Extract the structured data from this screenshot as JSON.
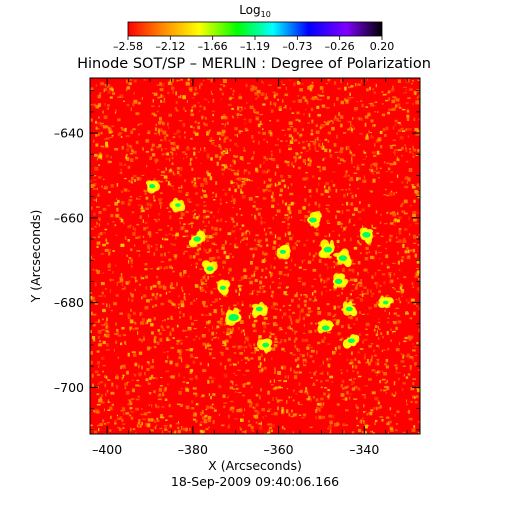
{
  "chart_data": {
    "type": "heatmap",
    "title": "Hinode SOT/SP – MERLIN : Degree of Polarization",
    "xlabel": "X (Arcseconds)",
    "ylabel": "Y (Arcseconds)",
    "footer": "18-Sep-2009 09:40:06.166",
    "xlim": [
      -404,
      -327
    ],
    "ylim": [
      -711,
      -627
    ],
    "x_ticks": [
      {
        "value": -400,
        "label": "–400"
      },
      {
        "value": -380,
        "label": "–380"
      },
      {
        "value": -360,
        "label": "–360"
      },
      {
        "value": -340,
        "label": "–340"
      }
    ],
    "y_ticks": [
      {
        "value": -640,
        "label": "–640"
      },
      {
        "value": -660,
        "label": "–660"
      },
      {
        "value": -680,
        "label": "–680"
      },
      {
        "value": -700,
        "label": "–700"
      }
    ],
    "colorbar": {
      "label_base": "Log",
      "label_sub": "10",
      "range": [
        -2.58,
        0.2
      ],
      "tick_labels": [
        "–2.58",
        "–2.12",
        "–1.66",
        "–1.19",
        "–0.73",
        "–0.26",
        "0.20"
      ],
      "colormap": [
        "#ff0000",
        "#ff8c00",
        "#ffff00",
        "#00ff00",
        "#00ffff",
        "#0000ff",
        "#8000ff",
        "#000000"
      ]
    },
    "colors": {
      "background": "#ff0000",
      "speckle": "#ffc800",
      "strong": "#00ff60",
      "medium": "#ffff00"
    },
    "strong_regions": [
      {
        "x": -389.5,
        "y": -652.5,
        "level": -1.8
      },
      {
        "x": -383.5,
        "y": -657.0,
        "level": -1.9
      },
      {
        "x": -379.0,
        "y": -665.0,
        "level": -1.6
      },
      {
        "x": -376.0,
        "y": -672.0,
        "level": -1.7
      },
      {
        "x": -373.0,
        "y": -676.5,
        "level": -1.8
      },
      {
        "x": -370.5,
        "y": -683.5,
        "level": -1.2
      },
      {
        "x": -364.5,
        "y": -681.5,
        "level": -1.7
      },
      {
        "x": -363.0,
        "y": -690.0,
        "level": -1.7
      },
      {
        "x": -359.0,
        "y": -668.0,
        "level": -1.8
      },
      {
        "x": -352.0,
        "y": -660.5,
        "level": -1.6
      },
      {
        "x": -348.5,
        "y": -667.5,
        "level": -1.5
      },
      {
        "x": -345.0,
        "y": -669.5,
        "level": -1.5
      },
      {
        "x": -339.5,
        "y": -664.0,
        "level": -1.5
      },
      {
        "x": -346.0,
        "y": -675.0,
        "level": -1.6
      },
      {
        "x": -343.5,
        "y": -681.5,
        "level": -1.7
      },
      {
        "x": -349.0,
        "y": -686.0,
        "level": -1.6
      },
      {
        "x": -343.0,
        "y": -689.0,
        "level": -1.7
      },
      {
        "x": -335.0,
        "y": -680.0,
        "level": -1.9
      }
    ]
  }
}
